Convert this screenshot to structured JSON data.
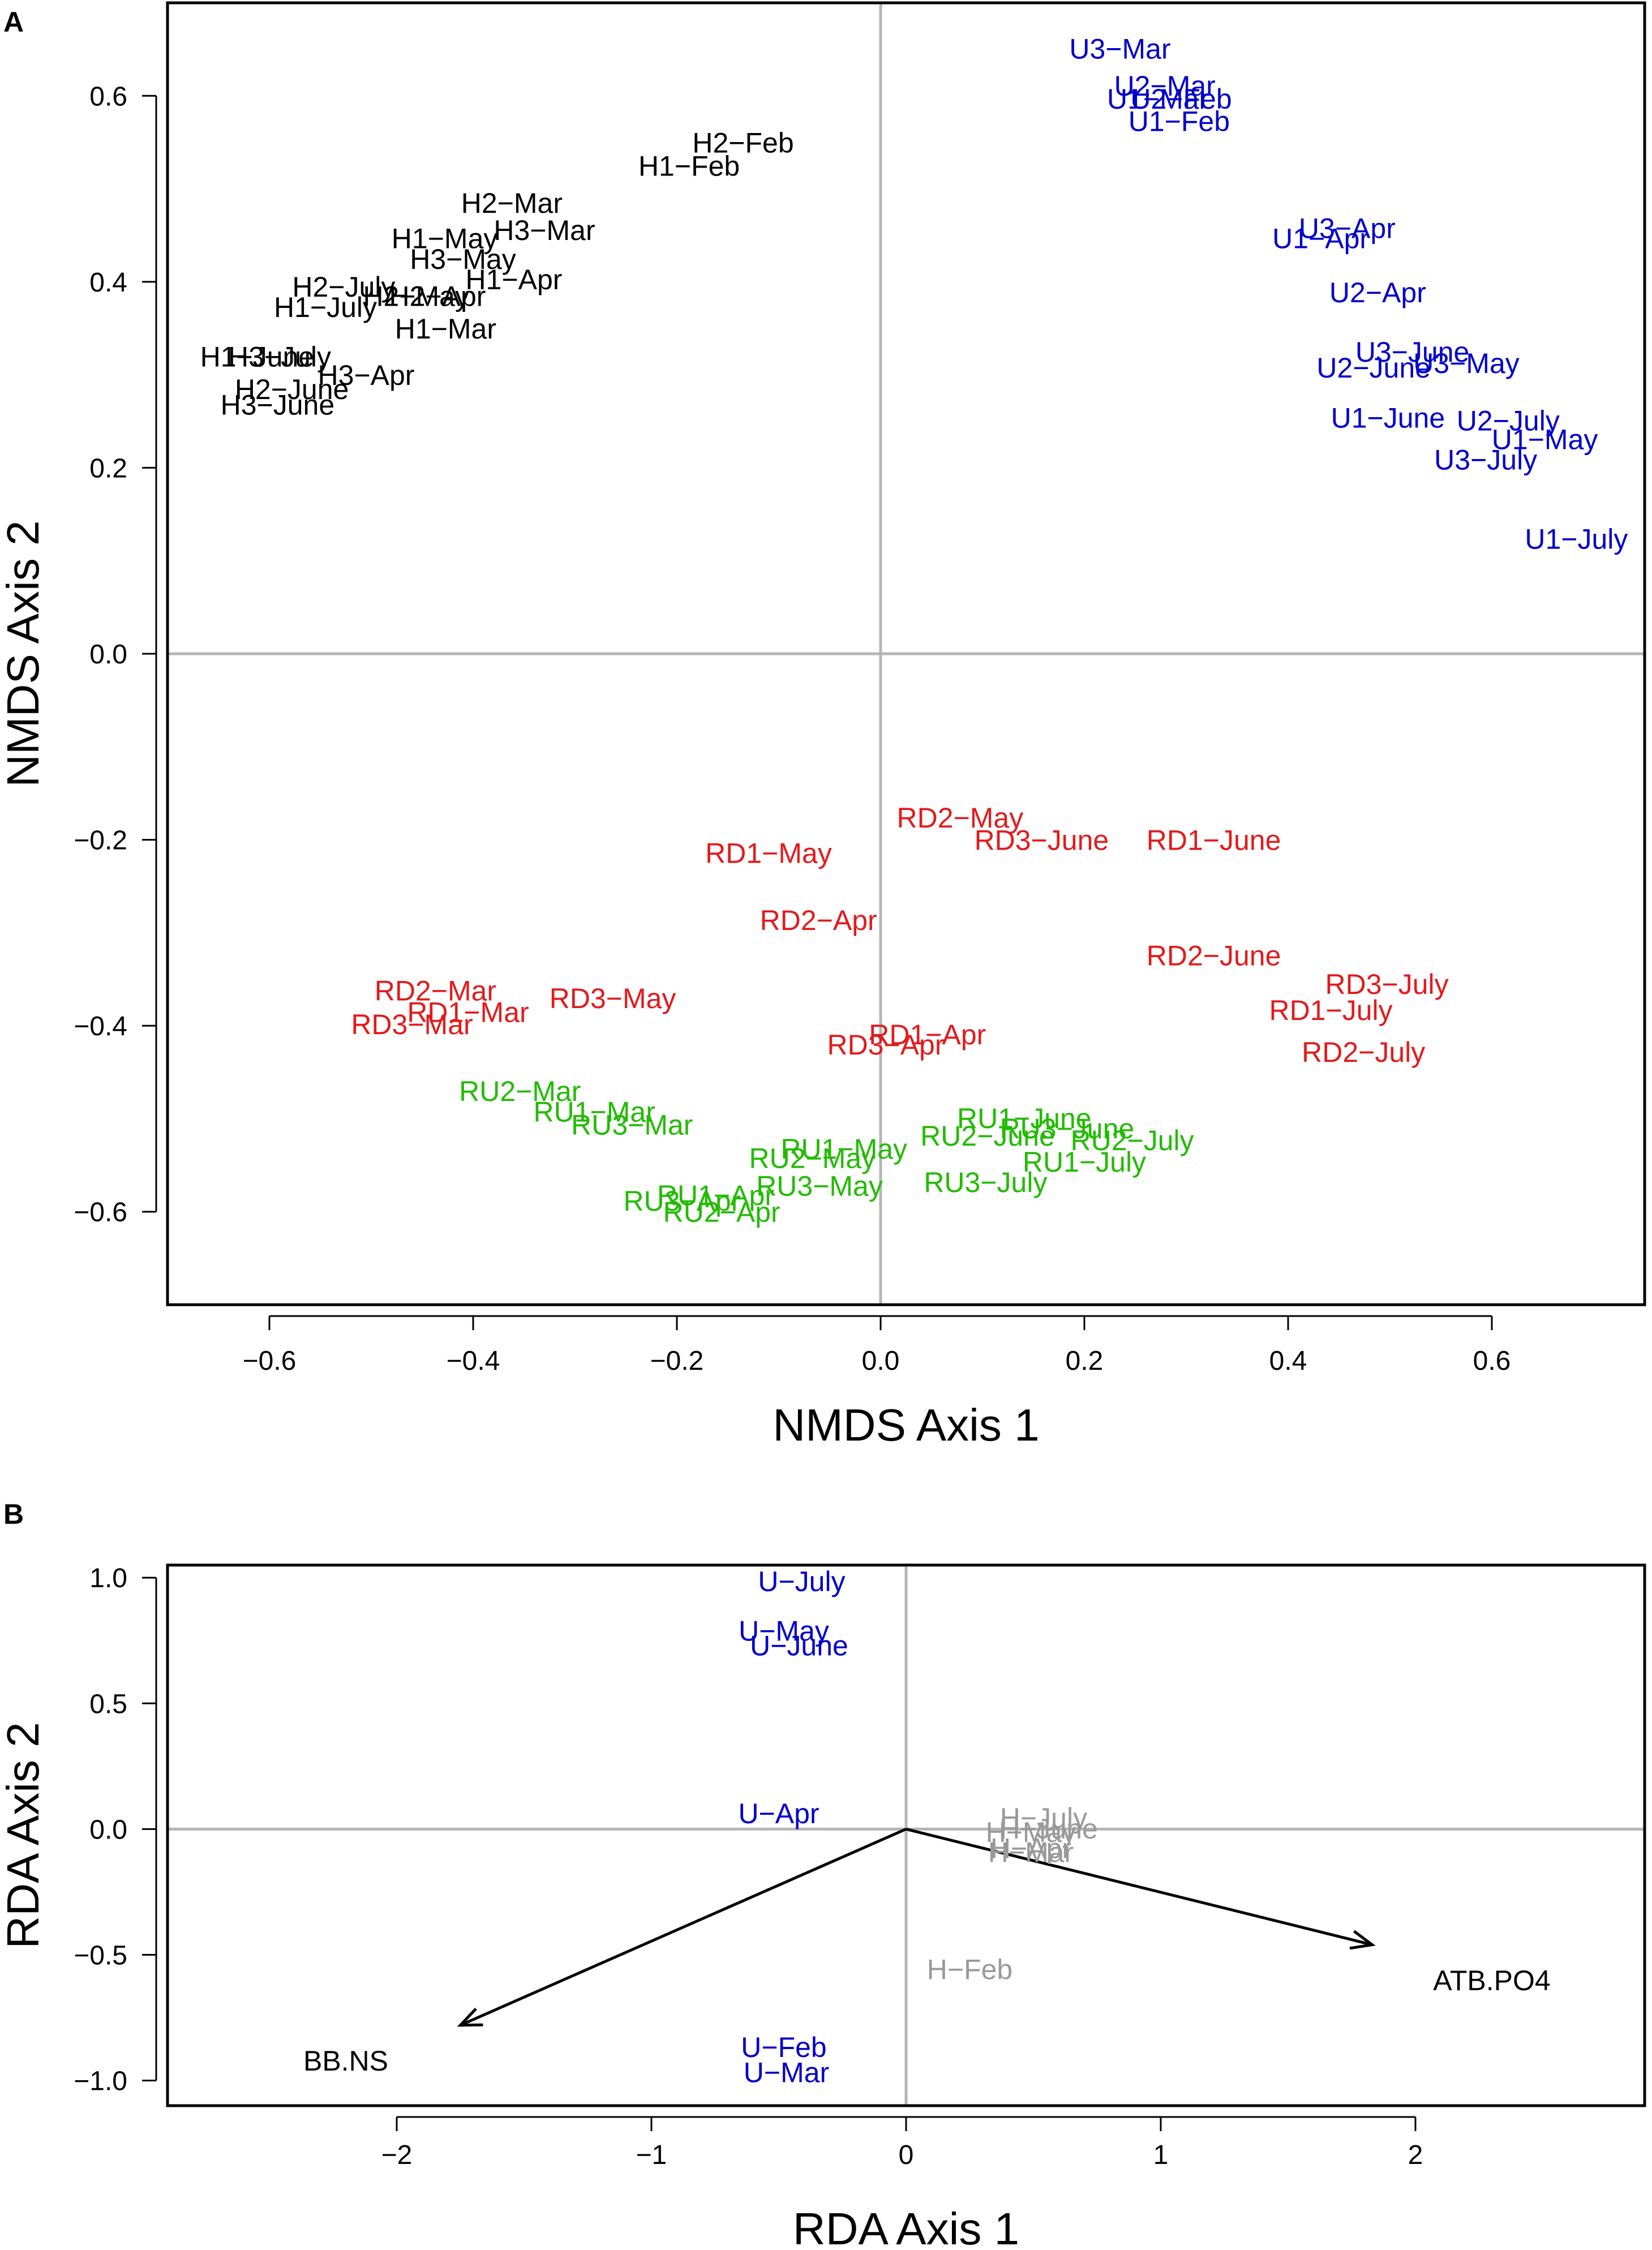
{
  "chart_data": [
    {
      "panel": "A",
      "type": "scatter",
      "title": "",
      "xlabel": "NMDS Axis 1",
      "ylabel": "NMDS Axis 2",
      "xlim": [
        -0.7,
        0.75
      ],
      "ylim": [
        -0.7,
        0.7
      ],
      "xticks": [
        -0.6,
        -0.4,
        -0.2,
        0.0,
        0.2,
        0.4,
        0.6
      ],
      "xtick_labels": [
        "−0.6",
        "−0.4",
        "−0.2",
        "0.0",
        "0.2",
        "0.4",
        "0.6"
      ],
      "yticks": [
        -0.6,
        -0.4,
        -0.2,
        0.0,
        0.2,
        0.4,
        0.6
      ],
      "ytick_labels": [
        "−0.6",
        "−0.4",
        "−0.2",
        "0.0",
        "0.2",
        "0.4",
        "0.6"
      ],
      "series": [
        {
          "name": "H",
          "color": "#000000",
          "points": [
            {
              "label": "H2−Feb",
              "x": -0.135,
              "y": 0.55
            },
            {
              "label": "H1−Feb",
              "x": -0.188,
              "y": 0.525
            },
            {
              "label": "H2−Mar",
              "x": -0.362,
              "y": 0.485
            },
            {
              "label": "H1−May",
              "x": -0.428,
              "y": 0.447
            },
            {
              "label": "H3−Mar",
              "x": -0.33,
              "y": 0.456
            },
            {
              "label": "H3−May",
              "x": -0.41,
              "y": 0.425
            },
            {
              "label": "H1−Apr",
              "x": -0.36,
              "y": 0.403
            },
            {
              "label": "H2−July",
              "x": -0.527,
              "y": 0.395
            },
            {
              "label": "H2−May",
              "x": -0.456,
              "y": 0.385
            },
            {
              "label": "H2−Apr",
              "x": -0.435,
              "y": 0.385
            },
            {
              "label": "H1−July",
              "x": -0.545,
              "y": 0.373
            },
            {
              "label": "H1−Mar",
              "x": -0.427,
              "y": 0.35
            },
            {
              "label": "H1−June",
              "x": -0.612,
              "y": 0.32
            },
            {
              "label": "H3−July",
              "x": -0.59,
              "y": 0.32
            },
            {
              "label": "H3−Apr",
              "x": -0.505,
              "y": 0.3
            },
            {
              "label": "H2−June",
              "x": -0.578,
              "y": 0.285
            },
            {
              "label": "H3−June",
              "x": -0.592,
              "y": 0.268
            }
          ]
        },
        {
          "name": "U",
          "color": "#0000cc",
          "points": [
            {
              "label": "U3−Mar",
              "x": 0.235,
              "y": 0.651
            },
            {
              "label": "U2−Mar",
              "x": 0.279,
              "y": 0.611
            },
            {
              "label": "U1−Mar",
              "x": 0.272,
              "y": 0.597
            },
            {
              "label": "U2−Feb",
              "x": 0.295,
              "y": 0.597
            },
            {
              "label": "U1−Feb",
              "x": 0.293,
              "y": 0.573
            },
            {
              "label": "U3−Apr",
              "x": 0.458,
              "y": 0.458
            },
            {
              "label": "U1−Apr",
              "x": 0.432,
              "y": 0.447
            },
            {
              "label": "U2−Apr",
              "x": 0.488,
              "y": 0.389
            },
            {
              "label": "U3−June",
              "x": 0.522,
              "y": 0.325
            },
            {
              "label": "U3−May",
              "x": 0.575,
              "y": 0.313
            },
            {
              "label": "U2−June",
              "x": 0.484,
              "y": 0.308
            },
            {
              "label": "U1−June",
              "x": 0.498,
              "y": 0.254
            },
            {
              "label": "U2−July",
              "x": 0.616,
              "y": 0.251
            },
            {
              "label": "U1−May",
              "x": 0.652,
              "y": 0.231
            },
            {
              "label": "U3−July",
              "x": 0.594,
              "y": 0.209
            },
            {
              "label": "U1−July",
              "x": 0.683,
              "y": 0.124
            }
          ]
        },
        {
          "name": "RD",
          "color": "#e31a1c",
          "points": [
            {
              "label": "RD2−May",
              "x": 0.078,
              "y": -0.176
            },
            {
              "label": "RD3−June",
              "x": 0.158,
              "y": -0.2
            },
            {
              "label": "RD1−June",
              "x": 0.327,
              "y": -0.2
            },
            {
              "label": "RD1−May",
              "x": -0.11,
              "y": -0.214
            },
            {
              "label": "RD2−Apr",
              "x": -0.061,
              "y": -0.286
            },
            {
              "label": "RD2−June",
              "x": 0.327,
              "y": -0.324
            },
            {
              "label": "RD3−July",
              "x": 0.497,
              "y": -0.355
            },
            {
              "label": "RD2−Mar",
              "x": -0.437,
              "y": -0.362
            },
            {
              "label": "RD3−May",
              "x": -0.263,
              "y": -0.37
            },
            {
              "label": "RD1−July",
              "x": 0.442,
              "y": -0.383
            },
            {
              "label": "RD1−Mar",
              "x": -0.405,
              "y": -0.385
            },
            {
              "label": "RD3−Mar",
              "x": -0.46,
              "y": -0.398
            },
            {
              "label": "RD1−Apr",
              "x": 0.046,
              "y": -0.409
            },
            {
              "label": "RD3−Apr",
              "x": 0.005,
              "y": -0.42
            },
            {
              "label": "RD2−July",
              "x": 0.474,
              "y": -0.428
            }
          ]
        },
        {
          "name": "RU",
          "color": "#22bb00",
          "points": [
            {
              "label": "RU2−Mar",
              "x": -0.354,
              "y": -0.47
            },
            {
              "label": "RU1−Mar",
              "x": -0.281,
              "y": -0.492
            },
            {
              "label": "RU3−Mar",
              "x": -0.244,
              "y": -0.506
            },
            {
              "label": "RU1−June",
              "x": 0.141,
              "y": -0.499
            },
            {
              "label": "RU3−June",
              "x": 0.183,
              "y": -0.51
            },
            {
              "label": "RU2−July",
              "x": 0.247,
              "y": -0.523
            },
            {
              "label": "RU2−June",
              "x": 0.105,
              "y": -0.518
            },
            {
              "label": "RU1−May",
              "x": -0.036,
              "y": -0.532
            },
            {
              "label": "RU2−May",
              "x": -0.067,
              "y": -0.542
            },
            {
              "label": "RU1−July",
              "x": 0.2,
              "y": -0.546
            },
            {
              "label": "RU3−July",
              "x": 0.103,
              "y": -0.568
            },
            {
              "label": "RU3−May",
              "x": -0.06,
              "y": -0.572
            },
            {
              "label": "RU1−Apr",
              "x": -0.162,
              "y": -0.582
            },
            {
              "label": "RU3−Apr",
              "x": -0.195,
              "y": -0.588
            },
            {
              "label": "RU2−Apr",
              "x": -0.156,
              "y": -0.6
            }
          ]
        }
      ],
      "reference_lines": {
        "x": 0,
        "y": 0,
        "color": "#b5b5b5"
      }
    },
    {
      "panel": "B",
      "type": "scatter",
      "title": "",
      "xlabel": "RDA Axis 1",
      "ylabel": "RDA Axis 2",
      "xlim": [
        -2.9,
        2.9
      ],
      "ylim": [
        -1.1,
        1.05
      ],
      "xticks": [
        -2,
        -1,
        0,
        1,
        2
      ],
      "xtick_labels": [
        "−2",
        "−1",
        "0",
        "1",
        "2"
      ],
      "yticks": [
        -1.0,
        -0.5,
        0.0,
        0.5,
        1.0
      ],
      "ytick_labels": [
        "−1.0",
        "−0.5",
        "0.0",
        "0.5",
        "1.0"
      ],
      "series": [
        {
          "name": "U",
          "color": "#0000cc",
          "points": [
            {
              "label": "U−July",
              "x": -0.41,
              "y": 0.987
            },
            {
              "label": "U−May",
              "x": -0.48,
              "y": 0.79
            },
            {
              "label": "U−June",
              "x": -0.42,
              "y": 0.732
            },
            {
              "label": "U−Apr",
              "x": -0.5,
              "y": 0.064
            },
            {
              "label": "U−Feb",
              "x": -0.48,
              "y": -0.866
            },
            {
              "label": "U−Mar",
              "x": -0.47,
              "y": -0.966
            }
          ]
        },
        {
          "name": "H",
          "color": "#999999",
          "points": [
            {
              "label": "H−July",
              "x": 0.54,
              "y": 0.046
            },
            {
              "label": "H−June",
              "x": 0.56,
              "y": 0.003
            },
            {
              "label": "H−May",
              "x": 0.49,
              "y": -0.01
            },
            {
              "label": "H−Apr",
              "x": 0.49,
              "y": -0.075
            },
            {
              "label": "H−Mar",
              "x": 0.49,
              "y": -0.09
            },
            {
              "label": "H−Feb",
              "x": 0.25,
              "y": -0.556
            }
          ]
        }
      ],
      "vectors": [
        {
          "label": "BB.NS",
          "x": -1.75,
          "y": -0.78,
          "label_x": -2.2,
          "label_y": -0.92,
          "color": "#000000"
        },
        {
          "label": "ATB.PO4",
          "x": 1.83,
          "y": -0.46,
          "label_x": 2.3,
          "label_y": -0.6,
          "color": "#000000"
        }
      ],
      "reference_lines": {
        "x": 0,
        "y": 0,
        "color": "#b5b5b5"
      }
    }
  ]
}
